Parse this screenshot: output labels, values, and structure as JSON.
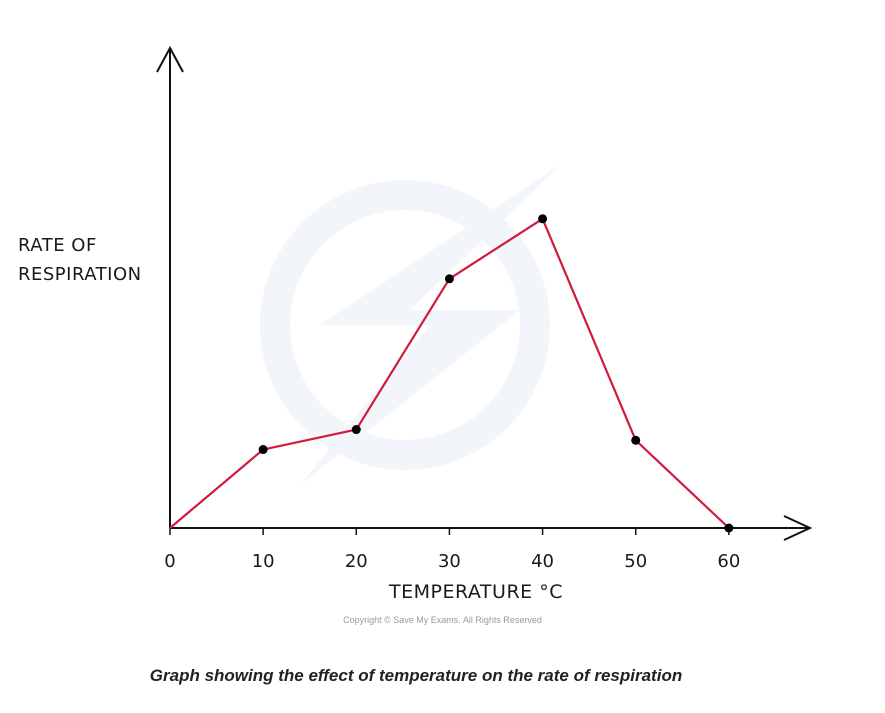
{
  "chart_data": {
    "type": "line",
    "x": [
      0,
      10,
      20,
      30,
      40,
      50,
      60
    ],
    "values": [
      0,
      2.55,
      3.2,
      8.1,
      10.05,
      2.85,
      0
    ],
    "xlabel": "TEMPERATURE",
    "xlabel_unit": "°C",
    "ylabel_lines": [
      "RATE  OF",
      "RESPIRATION"
    ],
    "xlim": [
      0,
      70
    ],
    "ylim": [
      0,
      15.6
    ],
    "line_color": "#d21a3a",
    "point_color": "#000000",
    "grid": false
  },
  "copyright": "Copyright © Save My Exams. All Rights Reserved",
  "caption": "Graph showing the effect of temperature on the rate of respiration"
}
